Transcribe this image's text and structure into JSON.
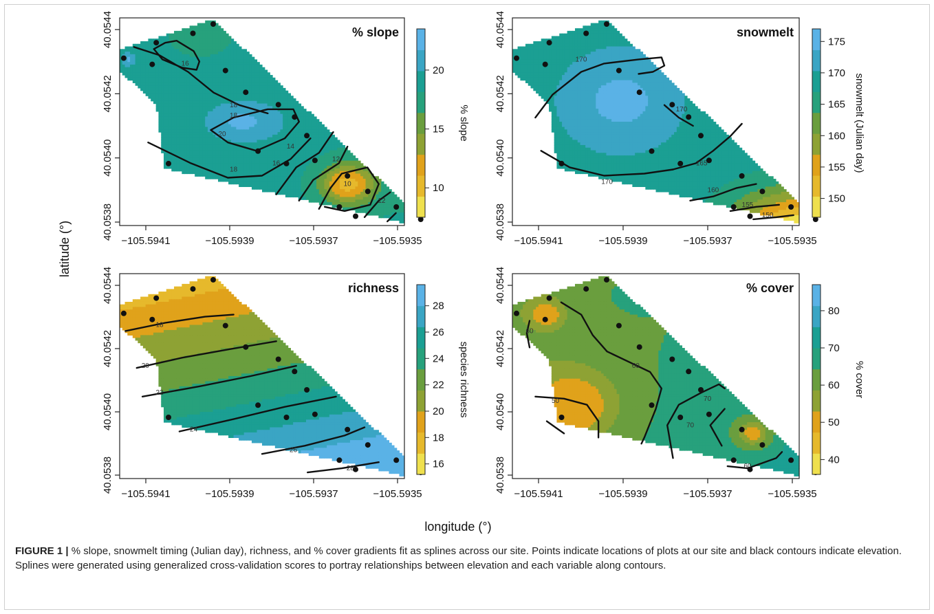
{
  "figure": {
    "shared_xlabel": "longitude (°)",
    "shared_ylabel": "latitude (°)",
    "caption_label": "FIGURE 1 |",
    "caption_text": "% slope, snowmelt timing (Julian day), richness, and % cover gradients fit as splines across our site. Points indicate locations of plots at our site and black contours indicate elevation. Splines were generated using generalized cross-validation scores to portray relationships between elevation and each variable along contours."
  },
  "chart_data": [
    {
      "type": "heatmap",
      "title": "% slope",
      "colorbar_label": "% slope",
      "colorbar_ticks": [
        10,
        15,
        20
      ],
      "colorbar_range": [
        7.5,
        23.5
      ],
      "contour_labels": [
        "16",
        "18",
        "18",
        "20",
        "18",
        "16",
        "14",
        "12",
        "10",
        "12"
      ],
      "xticks": [
        "−105.5941",
        "−105.5939",
        "−105.5937",
        "−105.5935"
      ],
      "yticks": [
        "40.0538",
        "40.0540",
        "40.0542",
        "40.0544"
      ],
      "xlim": [
        -105.5942,
        -105.5935
      ],
      "ylim": [
        40.0538,
        40.05447
      ],
      "colors": [
        "#efe04e",
        "#e6b92c",
        "#e0a21b",
        "#8ea234",
        "#6a9e3e",
        "#27a17c",
        "#1b9f93",
        "#3aa5c4",
        "#5ab2e6"
      ]
    },
    {
      "type": "heatmap",
      "title": "snowmelt",
      "colorbar_label": "snowmelt (Julian day)",
      "colorbar_ticks": [
        150,
        155,
        160,
        165,
        170,
        175
      ],
      "colorbar_range": [
        147,
        177
      ],
      "contour_labels": [
        "170",
        "170",
        "170",
        "165",
        "160",
        "155",
        "150"
      ],
      "xticks": [
        "−105.5941",
        "−105.5939",
        "−105.5937",
        "−105.5935"
      ],
      "yticks": [
        "40.0538",
        "40.0540",
        "40.0542",
        "40.0544"
      ],
      "xlim": [
        -105.5942,
        -105.5935
      ],
      "ylim": [
        40.0538,
        40.05447
      ],
      "colors": [
        "#efe04e",
        "#e6b92c",
        "#e0a21b",
        "#8ea234",
        "#6a9e3e",
        "#27a17c",
        "#1b9f93",
        "#3aa5c4",
        "#5ab2e6"
      ]
    },
    {
      "type": "heatmap",
      "title": "richness",
      "colorbar_label": "species richness",
      "colorbar_ticks": [
        16,
        18,
        20,
        22,
        24,
        26,
        28
      ],
      "colorbar_range": [
        15.2,
        29.6
      ],
      "contour_labels": [
        "18",
        "20",
        "22",
        "24",
        "26",
        "28"
      ],
      "xticks": [
        "−105.5941",
        "−105.5939",
        "−105.5937",
        "−105.5935"
      ],
      "yticks": [
        "40.0538",
        "40.0540",
        "40.0542",
        "40.0544"
      ],
      "xlim": [
        -105.5942,
        -105.5935
      ],
      "ylim": [
        40.0538,
        40.05447
      ],
      "colors": [
        "#efe04e",
        "#e6b92c",
        "#e0a21b",
        "#8ea234",
        "#6a9e3e",
        "#27a17c",
        "#1b9f93",
        "#3aa5c4",
        "#5ab2e6"
      ]
    },
    {
      "type": "heatmap",
      "title": "% cover",
      "colorbar_label": "% cover",
      "colorbar_ticks": [
        40,
        50,
        60,
        70,
        80
      ],
      "colorbar_range": [
        36,
        87
      ],
      "contour_labels": [
        "60",
        "60",
        "50",
        "70",
        "70",
        "60"
      ],
      "xticks": [
        "−105.5941",
        "−105.5939",
        "−105.5937",
        "−105.5935"
      ],
      "yticks": [
        "40.0538",
        "40.0540",
        "40.0542",
        "40.0544"
      ],
      "xlim": [
        -105.5942,
        -105.5935
      ],
      "ylim": [
        40.0538,
        40.05447
      ],
      "colors": [
        "#efe04e",
        "#e6b92c",
        "#e0a21b",
        "#8ea234",
        "#6a9e3e",
        "#27a17c",
        "#1b9f93",
        "#3aa5c4",
        "#5ab2e6"
      ]
    }
  ],
  "plot_points": {
    "lon": [
      -105.59419,
      -105.59412,
      -105.59411,
      -105.59408,
      -105.59402,
      -105.59397,
      -105.59394,
      -105.59389,
      -105.59386,
      -105.59381,
      -105.59379,
      -105.59377,
      -105.59374,
      -105.59372,
      -105.59366,
      -105.59364,
      -105.59362,
      -105.59359,
      -105.59352,
      -105.59346
    ],
    "lat": [
      40.05434,
      40.05432,
      40.05439,
      40.054,
      40.05442,
      40.05445,
      40.0543,
      40.05423,
      40.05404,
      40.05419,
      40.054,
      40.05415,
      40.05409,
      40.05401,
      40.05386,
      40.05396,
      40.05383,
      40.05391,
      40.05386,
      40.05382
    ]
  }
}
